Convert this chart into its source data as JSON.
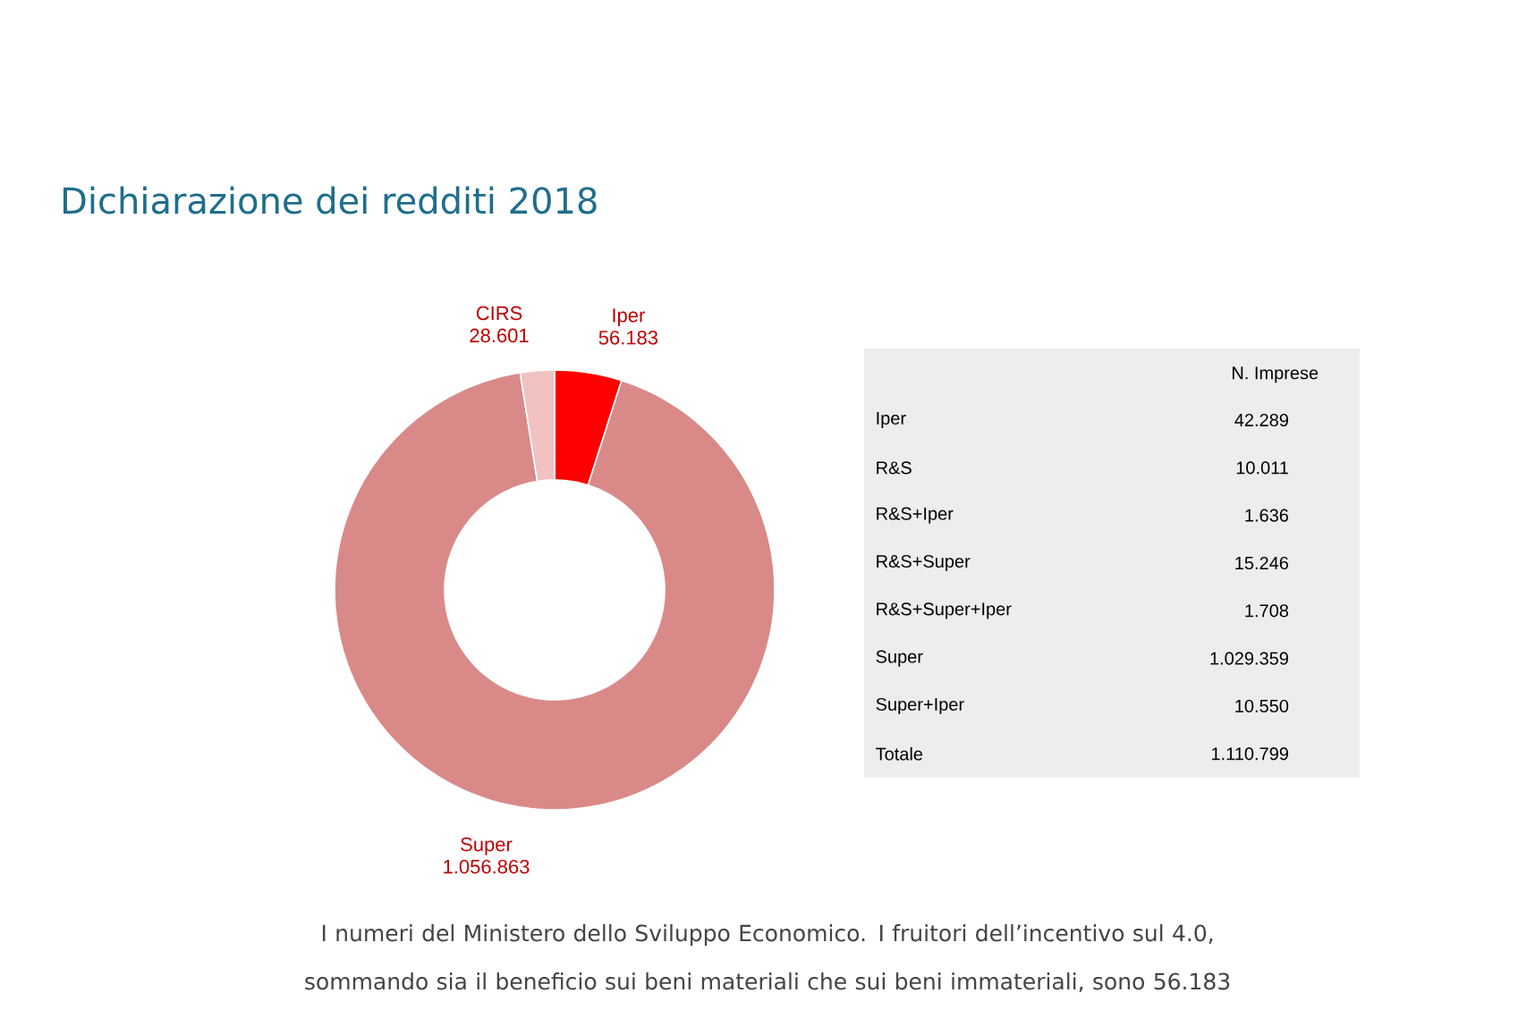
{
  "chart_data": [
    {
      "type": "donut",
      "title": "Dichiarazione dei redditi 2018",
      "categories": [
        "Iper",
        "Super",
        "CIRS"
      ],
      "values": [
        56183,
        1056863,
        28601
      ],
      "colors": [
        "#ff0000",
        "#d98a88",
        "#f0c2c2"
      ],
      "data_labels": true,
      "value_labels": [
        "56.183",
        "1.056.863",
        "28.601"
      ],
      "annotations": [
        "I numeri del Ministero dello Sviluppo Economico. I fruitori dell’incentivo sul 4.0, sommando sia il beneficio sui beni materiali che sui beni immateriali, sono 56.183"
      ]
    },
    {
      "type": "other",
      "title": "N. Imprese",
      "categories": [
        "Iper",
        "R&S",
        "R&S+Iper",
        "R&S+Super",
        "R&S+Super+Iper",
        "Super",
        "Super+Iper",
        "Totale"
      ],
      "data_labels": true,
      "value_labels": [
        "42.289",
        "10.011",
        "1.636",
        "15.246",
        "1.708",
        "1.029.359",
        "10.550",
        "1.110.799"
      ]
    }
  ]
}
